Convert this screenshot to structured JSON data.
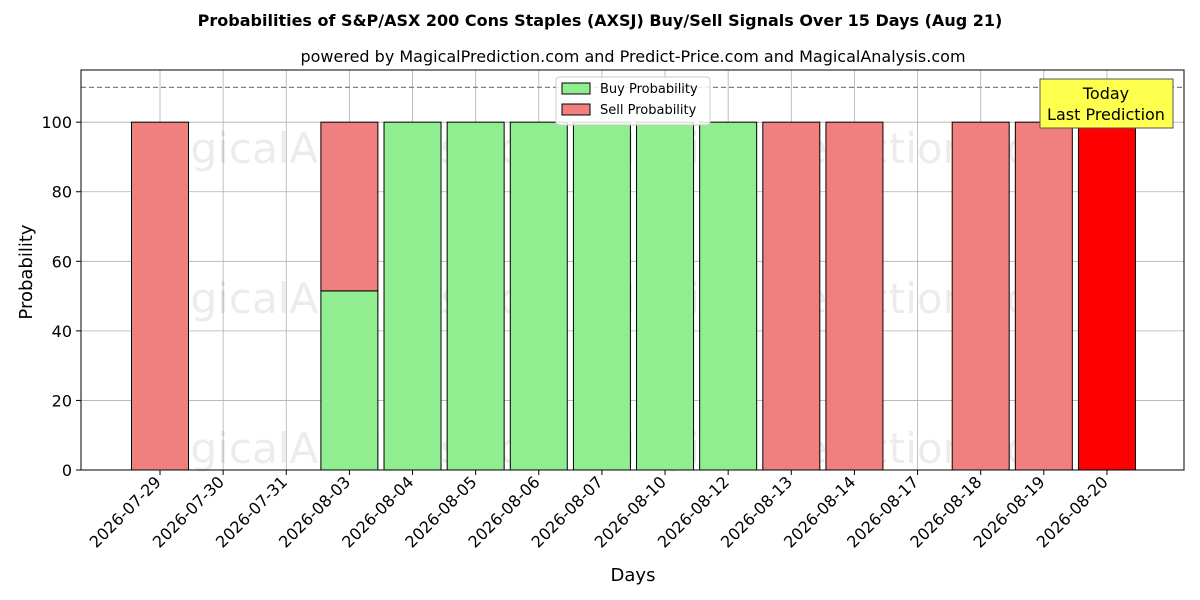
{
  "chart_data": {
    "type": "bar",
    "title": "Probabilities of S&P/ASX 200 Cons Staples (AXSJ) Buy/Sell Signals Over 15 Days (Aug 21)",
    "subtitle": "powered by MagicalPrediction.com and Predict-Price.com and MagicalAnalysis.com",
    "xlabel": "Days",
    "ylabel": "Probability",
    "ylim": [
      0,
      115
    ],
    "yticks": [
      "0",
      "20",
      "40",
      "60",
      "80",
      "100"
    ],
    "grid": true,
    "legend_placement": "top-center",
    "reference_line": 110,
    "categories": [
      "2026-07-29",
      "2026-07-30",
      "2026-07-31",
      "2026-08-03",
      "2026-08-04",
      "2026-08-05",
      "2026-08-06",
      "2026-08-07",
      "2026-08-10",
      "2026-08-12",
      "2026-08-13",
      "2026-08-14",
      "2026-08-17",
      "2026-08-18",
      "2026-08-19",
      "2026-08-20"
    ],
    "series": [
      {
        "name": "Buy Probability",
        "color": "#90ee90",
        "values": [
          0,
          0,
          0,
          51.5,
          100,
          100,
          100,
          100,
          100,
          100,
          0,
          0,
          0,
          0,
          0,
          0
        ]
      },
      {
        "name": "Sell Probability",
        "color": "#f08080",
        "values": [
          100,
          0,
          0,
          48.5,
          0,
          0,
          0,
          0,
          0,
          0,
          100,
          100,
          0,
          100,
          100,
          100
        ]
      }
    ],
    "highlight": {
      "category": "2026-08-20",
      "color": "#ff0000"
    },
    "annotation": {
      "lines": [
        "Today",
        "Last Prediction"
      ],
      "box_color": "#ffff4d"
    },
    "watermarks": [
      "MagicalAnalysis.com",
      "MagicalPrediction.com"
    ]
  }
}
